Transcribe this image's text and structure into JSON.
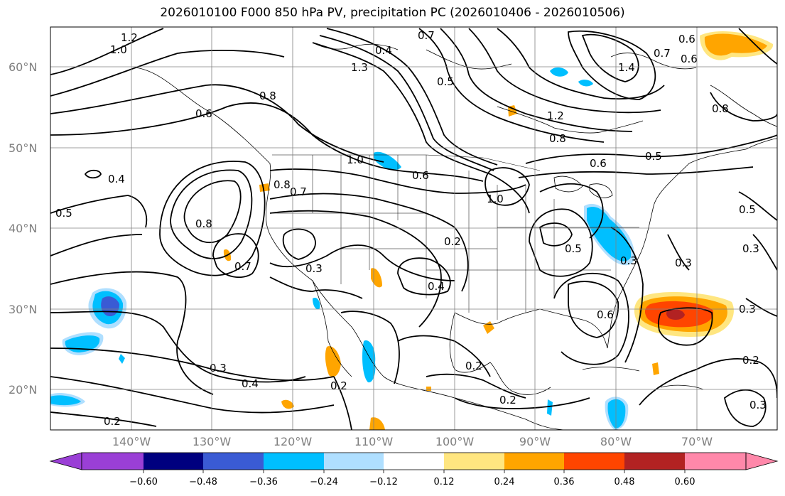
{
  "title": "2026010100 F000 850 hPa PV, precipitation PC (2026010406 - 2026010506)",
  "lat_labels": [
    "60°N",
    "50°N",
    "40°N",
    "30°N",
    "20°N"
  ],
  "lon_labels": [
    "140°W",
    "130°W",
    "120°W",
    "110°W",
    "100°W",
    "90°W",
    "80°W",
    "70°W"
  ],
  "colorbar": {
    "ticks": [
      "−0.60",
      "−0.48",
      "−0.36",
      "−0.24",
      "−0.12",
      "0.12",
      "0.24",
      "0.36",
      "0.48",
      "0.60"
    ],
    "colors": [
      "#9a3fd6",
      "#00007f",
      "#3a5bd4",
      "#00bfff",
      "#afdfff",
      "#ffffff",
      "#ffe680",
      "#ffa500",
      "#ff4500",
      "#b22222",
      "#ff88aa"
    ]
  },
  "contour_labels": [
    "1.2",
    "1.0",
    "0.7",
    "0.4",
    "1.3",
    "0.5",
    "0.8",
    "0.6",
    "0.6",
    "1.2",
    "1.4",
    "0.7",
    "0.6",
    "0.8",
    "0.6",
    "0.5",
    "0.4",
    "0.5",
    "0.8",
    "0.7",
    "0.8",
    "0.7",
    "0.3",
    "0.2",
    "0.4",
    "0.5",
    "0.3",
    "0.3",
    "0.3",
    "0.2",
    "0.3",
    "0.4",
    "0.2",
    "0.2",
    "0.2",
    "0.8",
    "1.0",
    "1.0",
    "0.6",
    "0.3",
    "0.6",
    "0.5",
    "0.2",
    "0.3"
  ],
  "colors": {
    "axes": "#000000",
    "grid": "#808080",
    "label": "#7f7f7f"
  }
}
